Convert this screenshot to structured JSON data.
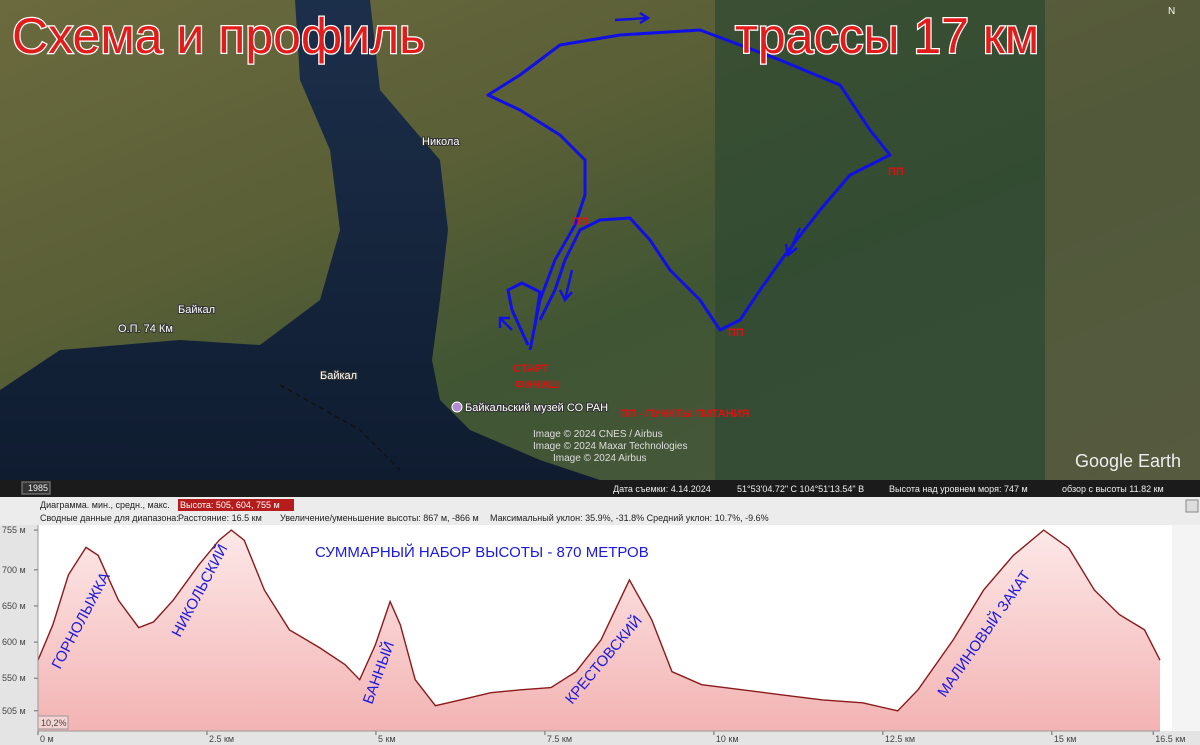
{
  "map": {
    "title_left": "Схема и профиль",
    "title_right": "трассы 17 км",
    "compass": "N",
    "places": [
      "Никола",
      "Байкал",
      "О.П. 74 Км",
      "Байкал",
      "Байкальский музей СО РАН"
    ],
    "food_points": [
      "ПП",
      "ПП",
      "ПП",
      "ПП"
    ],
    "start": "СТАРТ",
    "finish": "ФИНИШ",
    "legend": "ПП  -  ПУНКТЫ  ПИТАНИЯ",
    "credits": [
      "Image © 2024 CNES / Airbus",
      "Image © 2024 Maxar Technologies",
      "Image © 2024 Airbus"
    ],
    "logo": "Google Earth"
  },
  "status_bar": {
    "year": "1985",
    "date": "Дата съемки: 4.14.2024",
    "coords": "51°53'04.72\" С   104°51'13.54\" В",
    "altitude": "Высота над уровнем моря:   747 м",
    "eye": "обзор с высоты  11.82 км"
  },
  "info_bar": {
    "row1_label": "Диаграмма. мин., средн., макс.",
    "row1_value": "Высота: 505, 604, 755 м",
    "row2_label": "Сводные данные для диапазона:",
    "distance": "Расстояние: 16.5 км",
    "gain": "Увеличение/уменьшение высоты: 867 м, -866 м",
    "slope": "Максимальный уклон: 35.9%, -31.8% Средний уклон: 10.7%, -9.6%"
  },
  "chart_data": {
    "type": "area",
    "annotations": [
      "СУММАРНЫЙ НАБОР  ВЫСОТЫ  -  870 МЕТРОВ",
      "ГОРНОЛЫЖКА",
      "НИКОЛЬСКИЙ",
      "БАННЫЙ",
      "КРЕСТОВСКИЙ",
      "МАЛИНОВЫЙ ЗАКАТ"
    ],
    "cursor_label": "10,2%",
    "color": "#8b1a1a",
    "x": [
      0,
      0.22,
      0.45,
      0.71,
      0.89,
      1.19,
      1.49,
      1.71,
      2.0,
      2.38,
      2.68,
      2.86,
      3.05,
      3.35,
      3.72,
      4.17,
      4.54,
      4.76,
      4.99,
      5.21,
      5.36,
      5.58,
      5.88,
      6.25,
      6.7,
      7.14,
      7.59,
      7.96,
      8.33,
      8.75,
      9.08,
      9.38,
      9.82,
      10.42,
      11.01,
      11.61,
      12.2,
      12.72,
      13.02,
      13.54,
      13.99,
      14.43,
      14.88,
      15.25,
      15.63,
      16.0,
      16.37,
      16.6
    ],
    "values": [
      575,
      624,
      693,
      731,
      720,
      658,
      620,
      628,
      658,
      707,
      741,
      755,
      741,
      672,
      617,
      592,
      569,
      548,
      596,
      656,
      624,
      548,
      512,
      520,
      530,
      534,
      537,
      559,
      603,
      686,
      631,
      559,
      541,
      534,
      527,
      520,
      516,
      505,
      534,
      603,
      672,
      720,
      755,
      730,
      672,
      638,
      617,
      575
    ],
    "xlim": [
      0,
      16.6
    ],
    "ylim": [
      477,
      762
    ],
    "xticks": [
      {
        "value": 0,
        "label": "0 м"
      },
      {
        "value": 2.5,
        "label": "2.5 км"
      },
      {
        "value": 5,
        "label": "5 км"
      },
      {
        "value": 7.5,
        "label": "7.5 км"
      },
      {
        "value": 10,
        "label": "10 км"
      },
      {
        "value": 12.5,
        "label": "12.5 км"
      },
      {
        "value": 15,
        "label": "15 км"
      },
      {
        "value": 16.5,
        "label": "16.5 км"
      }
    ],
    "yticks": [
      {
        "value": 755,
        "label": "755 м"
      },
      {
        "value": 700,
        "label": "700 м"
      },
      {
        "value": 650,
        "label": "650 м"
      },
      {
        "value": 600,
        "label": "600 м"
      },
      {
        "value": 550,
        "label": "550 м"
      },
      {
        "value": 505,
        "label": "505 м"
      }
    ]
  }
}
